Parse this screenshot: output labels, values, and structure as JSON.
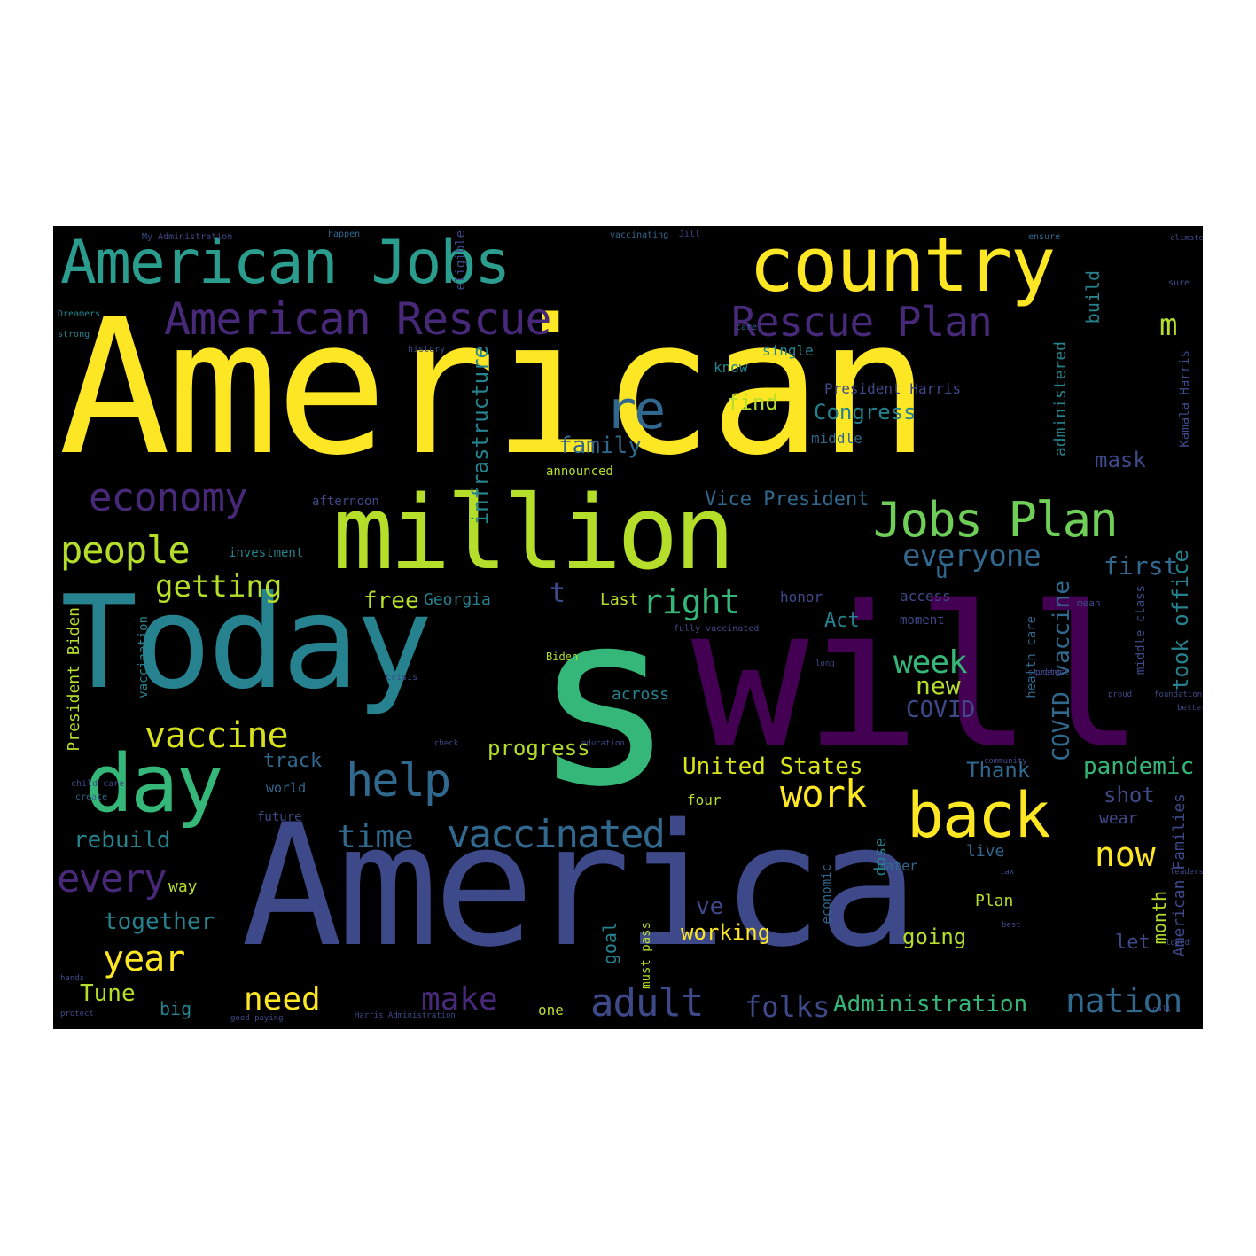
{
  "palette": {
    "yellow": "#fde725",
    "lime": "#b5de2b",
    "green": "#6ece58",
    "teal_green": "#35b779",
    "teal": "#26828e",
    "cyan_blue": "#31688e",
    "indigo": "#3e4989",
    "violet": "#482878",
    "purple": "#440154",
    "background": "#000000"
  },
  "words": [
    {
      "text": "American",
      "color": "#fde725"
    },
    {
      "text": "s",
      "color": "#35b779"
    },
    {
      "text": "will",
      "color": "#440154"
    },
    {
      "text": "America",
      "color": "#3e4989"
    },
    {
      "text": "Today",
      "color": "#26828e"
    },
    {
      "text": "million",
      "color": "#b5de2b"
    },
    {
      "text": "country",
      "color": "#fde725"
    },
    {
      "text": "American Jobs",
      "color": "#2a9d8f"
    },
    {
      "text": "American Rescue",
      "color": "#482878"
    },
    {
      "text": "Rescue Plan",
      "color": "#482878"
    },
    {
      "text": "Jobs Plan",
      "color": "#6ece58"
    },
    {
      "text": "day",
      "color": "#35b779"
    },
    {
      "text": "back",
      "color": "#fde725"
    },
    {
      "text": "help",
      "color": "#31688e"
    },
    {
      "text": "vaccinated",
      "color": "#31688e"
    },
    {
      "text": "vaccine",
      "color": "#d8e219"
    },
    {
      "text": "economy",
      "color": "#482878"
    },
    {
      "text": "people",
      "color": "#b5de2b"
    },
    {
      "text": "getting",
      "color": "#b5de2b"
    },
    {
      "text": "re",
      "color": "#31688e"
    },
    {
      "text": "m",
      "color": "#b5de2b"
    },
    {
      "text": "right",
      "color": "#35b779"
    },
    {
      "text": "everyone",
      "color": "#31688e"
    },
    {
      "text": "work",
      "color": "#fde725"
    },
    {
      "text": "time",
      "color": "#31688e"
    },
    {
      "text": "every",
      "color": "#482878"
    },
    {
      "text": "year",
      "color": "#fde725"
    },
    {
      "text": "need",
      "color": "#fde725"
    },
    {
      "text": "make",
      "color": "#482878"
    },
    {
      "text": "adult",
      "color": "#3e4989"
    },
    {
      "text": "folks",
      "color": "#3e4989"
    },
    {
      "text": "nation",
      "color": "#31688e"
    },
    {
      "text": "Administration",
      "color": "#35b779"
    },
    {
      "text": "now",
      "color": "#fde725"
    },
    {
      "text": "week",
      "color": "#35b779"
    },
    {
      "text": "new",
      "color": "#b5de2b"
    },
    {
      "text": "COVID",
      "color": "#3e4989"
    },
    {
      "text": "pandemic",
      "color": "#35b779"
    },
    {
      "text": "Thank",
      "color": "#31688e"
    },
    {
      "text": "United States",
      "color": "#d8e219"
    },
    {
      "text": "progress",
      "color": "#b5de2b"
    },
    {
      "text": "family",
      "color": "#31688e"
    },
    {
      "text": "find",
      "color": "#b5de2b"
    },
    {
      "text": "Congress",
      "color": "#26828e"
    },
    {
      "text": "Vice President",
      "color": "#31688e"
    },
    {
      "text": "President Harris",
      "color": "#3e4989"
    },
    {
      "text": "first",
      "color": "#31688e"
    },
    {
      "text": "mask",
      "color": "#3e4989"
    },
    {
      "text": "rebuild",
      "color": "#26828e"
    },
    {
      "text": "together",
      "color": "#26828e"
    },
    {
      "text": "Tune",
      "color": "#b5de2b"
    },
    {
      "text": "big",
      "color": "#26828e"
    },
    {
      "text": "free",
      "color": "#b5de2b"
    },
    {
      "text": "Georgia",
      "color": "#26828e"
    },
    {
      "text": "Last",
      "color": "#b5de2b"
    },
    {
      "text": "Act",
      "color": "#26828e"
    },
    {
      "text": "ve",
      "color": "#3e4989"
    },
    {
      "text": "working",
      "color": "#fde725"
    },
    {
      "text": "going",
      "color": "#b5de2b"
    },
    {
      "text": "Plan",
      "color": "#b5de2b"
    },
    {
      "text": "live",
      "color": "#31688e"
    },
    {
      "text": "wear",
      "color": "#3e4989"
    },
    {
      "text": "shot",
      "color": "#3e4989"
    },
    {
      "text": "let",
      "color": "#3e4989"
    },
    {
      "text": "t",
      "color": "#3e4989"
    },
    {
      "text": "u",
      "color": "#31688e"
    },
    {
      "text": "track",
      "color": "#31688e"
    },
    {
      "text": "four",
      "color": "#b5de2b"
    },
    {
      "text": "world",
      "color": "#31688e"
    },
    {
      "text": "future",
      "color": "#3e4989"
    },
    {
      "text": "across",
      "color": "#26828e"
    },
    {
      "text": "one",
      "color": "#b5de2b"
    },
    {
      "text": "way",
      "color": "#b5de2b"
    },
    {
      "text": "single",
      "color": "#26828e"
    },
    {
      "text": "know",
      "color": "#26828e"
    },
    {
      "text": "announced",
      "color": "#b5de2b"
    },
    {
      "text": "afternoon",
      "color": "#3e4989"
    },
    {
      "text": "investment",
      "color": "#26828e"
    },
    {
      "text": "honor",
      "color": "#3e4989"
    },
    {
      "text": "access",
      "color": "#3e4989"
    },
    {
      "text": "moment",
      "color": "#3e4989"
    },
    {
      "text": "middle",
      "color": "#31688e"
    },
    {
      "text": "water",
      "color": "#31688e"
    },
    {
      "text": "infrastructure",
      "color": "#26828e"
    },
    {
      "text": "COVID vaccine",
      "color": "#31688e"
    },
    {
      "text": "took office",
      "color": "#26828e"
    },
    {
      "text": "month",
      "color": "#b5de2b"
    },
    {
      "text": "American Families",
      "color": "#3e4989"
    },
    {
      "text": "President Biden",
      "color": "#b5de2b"
    },
    {
      "text": "vaccination",
      "color": "#26828e"
    },
    {
      "text": "build",
      "color": "#26828e"
    },
    {
      "text": "administered",
      "color": "#26828e"
    },
    {
      "text": "dose",
      "color": "#26828e"
    },
    {
      "text": "goal",
      "color": "#26828e"
    },
    {
      "text": "must pass",
      "color": "#b5de2b"
    },
    {
      "text": "middle class",
      "color": "#3e4989"
    },
    {
      "text": "health care",
      "color": "#31688e"
    },
    {
      "text": "economic",
      "color": "#31688e"
    },
    {
      "text": "Kamala Harris",
      "color": "#3e4989"
    },
    {
      "text": "eligible",
      "color": "#3e4989"
    },
    {
      "text": "Jill",
      "color": "#3e4989"
    },
    {
      "text": "Biden",
      "color": "#b5de2b"
    },
    {
      "text": "My Administration",
      "color": "#3e4989"
    },
    {
      "text": "happen",
      "color": "#31688e"
    },
    {
      "text": "vaccinating",
      "color": "#31688e"
    },
    {
      "text": "care",
      "color": "#31688e"
    },
    {
      "text": "Dreamers",
      "color": "#26828e"
    },
    {
      "text": "strong",
      "color": "#26828e"
    },
    {
      "text": "history",
      "color": "#3e4989"
    },
    {
      "text": "ensure",
      "color": "#31688e"
    },
    {
      "text": "mean",
      "color": "#3e4989"
    },
    {
      "text": "sure",
      "color": "#3e4989"
    },
    {
      "text": "create",
      "color": "#31688e"
    },
    {
      "text": "crisis",
      "color": "#3e4989"
    },
    {
      "text": "child care",
      "color": "#3e4989"
    },
    {
      "text": "Harris Administration",
      "color": "#3e4989"
    },
    {
      "text": "good paying",
      "color": "#3e4989"
    },
    {
      "text": "hands",
      "color": "#3e4989"
    },
    {
      "text": "fully vaccinated",
      "color": "#3e4989"
    },
    {
      "text": "community",
      "color": "#3e4989"
    },
    {
      "text": "long",
      "color": "#3e4989"
    },
    {
      "text": "tax",
      "color": "#3e4989"
    },
    {
      "text": "better",
      "color": "#3e4989"
    },
    {
      "text": "check",
      "color": "#3e4989"
    },
    {
      "text": "education",
      "color": "#3e4989"
    },
    {
      "text": "protect",
      "color": "#3e4989"
    },
    {
      "text": "foundation",
      "color": "#3e4989"
    },
    {
      "text": "protect",
      "color": "#3e4989"
    },
    {
      "text": "call",
      "color": "#3e4989"
    },
    {
      "text": "student",
      "color": "#3e4989"
    },
    {
      "text": "best",
      "color": "#3e4989"
    },
    {
      "text": "loved",
      "color": "#3e4989"
    },
    {
      "text": "proud",
      "color": "#3e4989"
    },
    {
      "text": "leadership",
      "color": "#3e4989"
    },
    {
      "text": "climate",
      "color": "#3e4989"
    },
    {
      "text": "job",
      "color": "#3e4989"
    }
  ]
}
